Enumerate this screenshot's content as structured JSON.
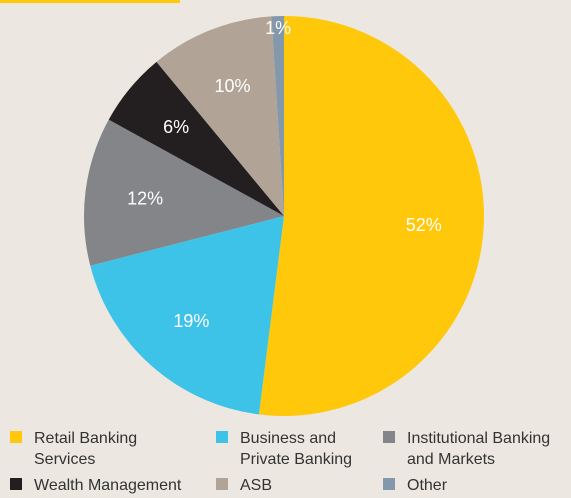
{
  "chart_data": {
    "type": "pie",
    "title": "",
    "slices": [
      {
        "label": "Retail Banking Services",
        "value": 52,
        "display": "52%",
        "color": "#ffc80a"
      },
      {
        "label": "Business and Private Banking",
        "value": 19,
        "display": "19%",
        "color": "#3ec3e8"
      },
      {
        "label": "Institutional Banking and Markets",
        "value": 12,
        "display": "12%",
        "color": "#838589"
      },
      {
        "label": "Wealth Management",
        "value": 6,
        "display": "6%",
        "color": "#231f20"
      },
      {
        "label": "ASB",
        "value": 10,
        "display": "10%",
        "color": "#b1a496"
      },
      {
        "label": "Other",
        "value": 1,
        "display": "1%",
        "color": "#8498ab"
      }
    ],
    "start_angle_deg": 0,
    "direction": "clockwise",
    "legend_position": "bottom"
  },
  "legend": {
    "items": [
      {
        "label": "Retail Banking\nServices",
        "color": "#ffc80a"
      },
      {
        "label": "Business and\nPrivate Banking",
        "color": "#3ec3e8"
      },
      {
        "label": "Institutional Banking\nand Markets",
        "color": "#838589"
      },
      {
        "label": "Wealth Management",
        "color": "#231f20"
      },
      {
        "label": "ASB",
        "color": "#b1a496"
      },
      {
        "label": "Other",
        "color": "#8498ab"
      }
    ]
  }
}
